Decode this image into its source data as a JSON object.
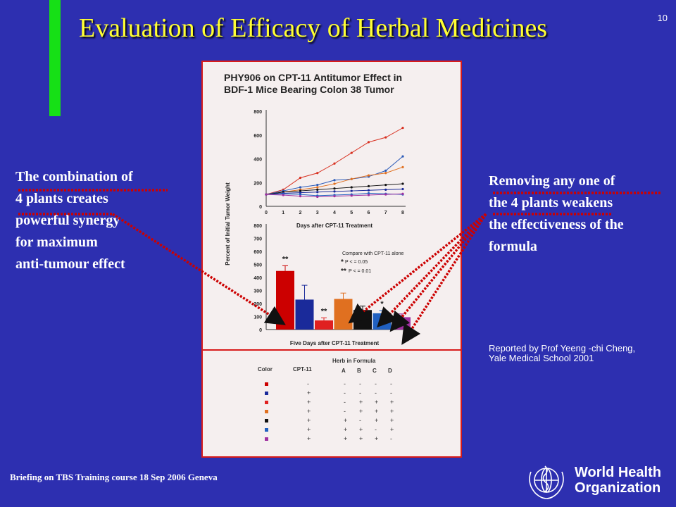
{
  "slide": {
    "title": "Evaluation of Efficacy of Herbal Medicines",
    "number": "10",
    "footer": "Briefing on TBS Training course 18  Sep 2006 Geneva",
    "left_text": [
      "The combination of",
      "4 plants creates",
      "powerful synergy",
      "for maximum",
      "anti-tumour effect"
    ],
    "right_text": [
      "Removing any one of",
      "the 4 plants weakens",
      "the effectiveness of the",
      "formula"
    ],
    "reporter": [
      "Reported by Prof Yeeng -chi Cheng,",
      "Yale Medical School 2001"
    ],
    "logo": {
      "line1": "World Health",
      "line2": "Organization"
    },
    "colors": {
      "background": "#2d2fb0",
      "title": "#ffff33",
      "accent_bar": "#16e016",
      "arrow": "#cc0000"
    }
  },
  "figure": {
    "title_lines": [
      "PHY906 on CPT-11 Antitumor Effect in",
      "BDF-1 Mice Bearing Colon 38 Tumor"
    ],
    "ylabel": "Percent of Initial Tumor Weight",
    "compare": {
      "line1": "Compare with CPT-11 alone",
      "p1": "P < = 0.05",
      "p2": "P < = 0.01"
    },
    "table": {
      "herb_header": "Herb in Formula",
      "color_header": "Color",
      "cpt_header": "CPT-11",
      "herbs": [
        "A",
        "B",
        "C",
        "D"
      ],
      "rows": [
        {
          "color": "#cc0000",
          "cells": [
            "-",
            "-",
            "-",
            "-",
            "-"
          ]
        },
        {
          "color": "#1a2a9a",
          "cells": [
            "+",
            "-",
            "-",
            "-",
            "-"
          ]
        },
        {
          "color": "#e02020",
          "cells": [
            "+",
            "-",
            "+",
            "+",
            "+"
          ]
        },
        {
          "color": "#e07020",
          "cells": [
            "+",
            "-",
            "+",
            "+",
            "+"
          ]
        },
        {
          "color": "#111111",
          "cells": [
            "+",
            "+",
            "-",
            "+",
            "+"
          ]
        },
        {
          "color": "#2060c0",
          "cells": [
            "+",
            "+",
            "+",
            "-",
            "+"
          ]
        },
        {
          "color": "#a030a0",
          "cells": [
            "+",
            "+",
            "+",
            "+",
            "-"
          ]
        }
      ]
    }
  },
  "chart_data": [
    {
      "type": "line",
      "xlabel": "Days after CPT-11 Treatment",
      "x": [
        0,
        1,
        2,
        3,
        4,
        5,
        6,
        7,
        8
      ],
      "xlim": [
        0,
        8
      ],
      "ylim": [
        0,
        800
      ],
      "yticks": [
        0,
        200,
        400,
        600,
        800
      ],
      "series": [
        {
          "color": "#d83020",
          "values": [
            100,
            140,
            240,
            280,
            360,
            450,
            540,
            580,
            660
          ]
        },
        {
          "color": "#2a5ab8",
          "values": [
            100,
            130,
            160,
            180,
            220,
            230,
            250,
            300,
            420
          ]
        },
        {
          "color": "#e07020",
          "values": [
            100,
            120,
            140,
            160,
            190,
            230,
            260,
            280,
            330
          ]
        },
        {
          "color": "#111111",
          "values": [
            100,
            120,
            130,
            140,
            150,
            160,
            170,
            180,
            190
          ]
        },
        {
          "color": "#1a2a9a",
          "values": [
            100,
            110,
            115,
            120,
            125,
            130,
            135,
            140,
            145
          ]
        },
        {
          "color": "#2060c0",
          "values": [
            100,
            105,
            100,
            90,
            95,
            100,
            110,
            105,
            100
          ]
        },
        {
          "color": "#a030a0",
          "values": [
            100,
            95,
            85,
            80,
            85,
            90,
            95,
            100,
            105
          ]
        }
      ]
    },
    {
      "type": "bar",
      "xlabel": "Five Days after CPT-11 Treatment",
      "ylim": [
        0,
        800
      ],
      "yticks": [
        0,
        100,
        200,
        300,
        400,
        500,
        600,
        700,
        800
      ],
      "values": [
        450,
        230,
        70,
        235,
        150,
        125,
        95
      ],
      "errors": [
        40,
        110,
        20,
        45,
        30,
        20,
        25
      ],
      "colors": [
        "#cc0000",
        "#1a2a9a",
        "#e02020",
        "#e07020",
        "#111111",
        "#2060c0",
        "#a030a0"
      ],
      "annotations": [
        "**",
        "",
        "**",
        "",
        "",
        "*",
        ""
      ]
    }
  ]
}
